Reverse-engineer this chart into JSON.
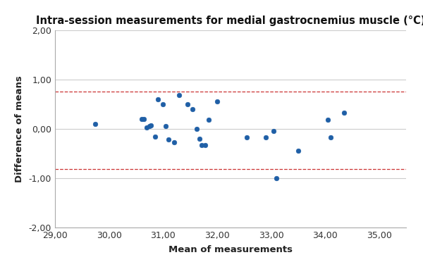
{
  "title": "Intra-session measurements for medial gastrocnemius muscle (°C)",
  "xlabel": "Mean of measurements",
  "ylabel": "Difference of means",
  "xlim": [
    29.0,
    35.5
  ],
  "ylim": [
    -2.0,
    2.0
  ],
  "xticks": [
    29.0,
    30.0,
    31.0,
    32.0,
    33.0,
    34.0,
    35.0
  ],
  "yticks": [
    -2.0,
    -1.0,
    0.0,
    1.0,
    2.0
  ],
  "upper_loa": 0.76,
  "lower_loa": -0.82,
  "dot_color": "#1f5fa6",
  "dot_edgecolor": "#1f5fa6",
  "line_color": "#cc3333",
  "scatter_x": [
    29.75,
    30.6,
    30.65,
    30.7,
    30.75,
    30.78,
    30.85,
    30.9,
    31.0,
    31.05,
    31.1,
    31.2,
    31.3,
    31.45,
    31.55,
    31.62,
    31.68,
    31.72,
    31.78,
    31.85,
    32.0,
    32.55,
    32.9,
    33.05,
    33.1,
    33.5,
    34.05,
    34.1,
    34.35
  ],
  "scatter_y": [
    0.1,
    0.2,
    0.2,
    0.03,
    0.05,
    0.07,
    -0.16,
    0.6,
    0.5,
    0.05,
    -0.22,
    -0.28,
    0.68,
    0.5,
    0.4,
    0.0,
    -0.2,
    -0.33,
    -0.33,
    0.18,
    0.55,
    -0.18,
    -0.18,
    -0.05,
    -1.0,
    -0.45,
    0.18,
    -0.18,
    0.32
  ],
  "background_color": "#ffffff",
  "grid_color": "#cccccc",
  "bottom_bar_color": "#000000",
  "title_fontsize": 10.5,
  "label_fontsize": 9.5,
  "tick_fontsize": 9
}
